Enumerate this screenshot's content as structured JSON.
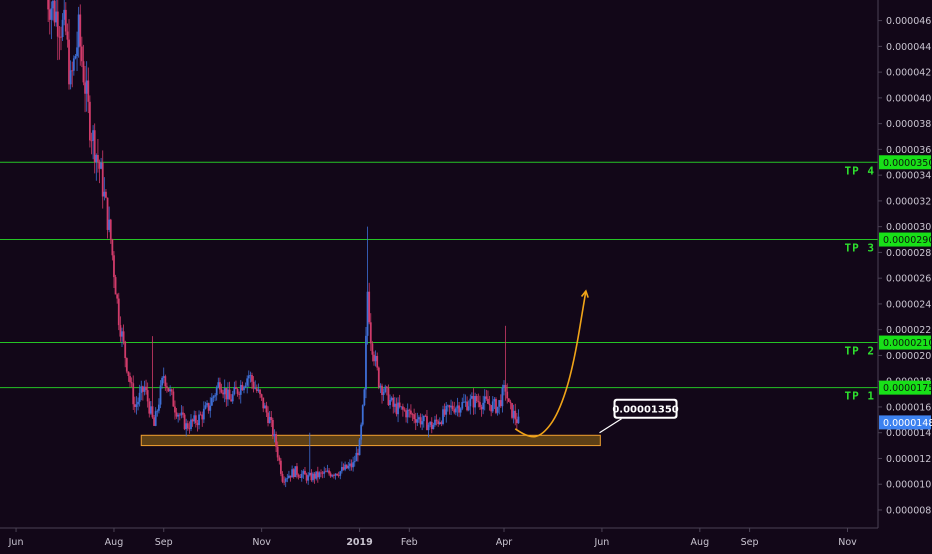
{
  "colors": {
    "background": "#120718",
    "axis_text": "#c9c4d0",
    "tp_line": "#25c425",
    "tp_badge": "#18e018",
    "up_candle": "#3e6fd6",
    "down_candle": "#d03b6a",
    "support_fill": "#6b4a16",
    "support_stroke": "#f0a030",
    "projection": "#f0a418",
    "current_price_badge": "#3d82f0"
  },
  "chart_data": {
    "type": "candlestick",
    "price_axis": {
      "ylim": [
        7e-07,
        4.7e-06
      ],
      "ticks": [
        "0.00000800",
        "0.00001000",
        "0.00001200",
        "0.00001400",
        "0.00001600",
        "0.00001800",
        "0.00002000",
        "0.00002200",
        "0.00002400",
        "0.00002600",
        "0.00002800",
        "0.00003000",
        "0.00003200",
        "0.00003400",
        "0.00003600",
        "0.00003800",
        "0.00004000",
        "0.00004200",
        "0.00004400",
        "0.00004600"
      ]
    },
    "time_axis": {
      "ticks": [
        {
          "label": "Jun",
          "date": "2018-06-01"
        },
        {
          "label": "Aug",
          "date": "2018-08-01"
        },
        {
          "label": "Sep",
          "date": "2018-09-01"
        },
        {
          "label": "Nov",
          "date": "2018-11-01"
        },
        {
          "label": "2019",
          "date": "2019-01-01",
          "bold": true
        },
        {
          "label": "Feb",
          "date": "2019-02-01"
        },
        {
          "label": "Apr",
          "date": "2019-04-01"
        },
        {
          "label": "Jun",
          "date": "2019-06-01"
        },
        {
          "label": "Aug",
          "date": "2019-08-01"
        },
        {
          "label": "Sep",
          "date": "2019-09-01"
        },
        {
          "label": "Nov",
          "date": "2019-11-01"
        }
      ]
    },
    "levels": [
      {
        "name": "TP 4",
        "price": 3.5e-06,
        "label": "0.00003500"
      },
      {
        "name": "TP 3",
        "price": 2.9e-06,
        "label": "0.00002900"
      },
      {
        "name": "TP 2",
        "price": 2.1e-06,
        "label": "0.00002100"
      },
      {
        "name": "TP 1",
        "price": 1.75e-06,
        "label": "0.00001750"
      }
    ],
    "current_price": {
      "price": 1.48e-06,
      "label": "0.00001480"
    },
    "support_zone": {
      "top": 1.38e-06,
      "bottom": 1.3e-06,
      "start": "2018-08-18",
      "end": "2019-05-31"
    },
    "callout": {
      "text": "0.00001350",
      "start": "2019-06-02",
      "price": 1.4e-06
    },
    "projection": [
      {
        "date": "2019-04-08",
        "price": 1.43e-06
      },
      {
        "date": "2019-04-16",
        "price": 1.36e-06
      },
      {
        "date": "2019-04-25",
        "price": 1.38e-06
      },
      {
        "date": "2019-05-05",
        "price": 1.55e-06
      },
      {
        "date": "2019-05-14",
        "price": 1.9e-06
      },
      {
        "date": "2019-05-22",
        "price": 2.5e-06
      }
    ],
    "series_anchors": [
      {
        "date": "2018-06-20",
        "price": 4.8e-06
      },
      {
        "date": "2018-07-02",
        "price": 4.5e-06
      },
      {
        "date": "2018-07-05",
        "price": 4.1e-06
      },
      {
        "date": "2018-07-10",
        "price": 4.5e-06
      },
      {
        "date": "2018-07-17",
        "price": 3.8e-06
      },
      {
        "date": "2018-07-24",
        "price": 3.4e-06
      },
      {
        "date": "2018-07-30",
        "price": 2.9e-06
      },
      {
        "date": "2018-08-04",
        "price": 2.3e-06
      },
      {
        "date": "2018-08-08",
        "price": 2e-06
      },
      {
        "date": "2018-08-14",
        "price": 1.6e-06
      },
      {
        "date": "2018-08-20",
        "price": 1.75e-06
      },
      {
        "date": "2018-08-26",
        "price": 1.45e-06
      },
      {
        "date": "2018-09-01",
        "price": 1.85e-06
      },
      {
        "date": "2018-09-08",
        "price": 1.6e-06
      },
      {
        "date": "2018-09-15",
        "price": 1.45e-06
      },
      {
        "date": "2018-09-22",
        "price": 1.5e-06
      },
      {
        "date": "2018-09-29",
        "price": 1.6e-06
      },
      {
        "date": "2018-10-06",
        "price": 1.8e-06
      },
      {
        "date": "2018-10-12",
        "price": 1.65e-06
      },
      {
        "date": "2018-10-18",
        "price": 1.75e-06
      },
      {
        "date": "2018-10-24",
        "price": 1.85e-06
      },
      {
        "date": "2018-10-30",
        "price": 1.7e-06
      },
      {
        "date": "2018-11-06",
        "price": 1.5e-06
      },
      {
        "date": "2018-11-10",
        "price": 1.3e-06
      },
      {
        "date": "2018-11-14",
        "price": 1.05e-06
      },
      {
        "date": "2018-11-22",
        "price": 1.1e-06
      },
      {
        "date": "2018-11-30",
        "price": 1.05e-06
      },
      {
        "date": "2018-12-10",
        "price": 1.08e-06
      },
      {
        "date": "2018-12-20",
        "price": 1.1e-06
      },
      {
        "date": "2018-12-28",
        "price": 1.15e-06
      },
      {
        "date": "2019-01-01",
        "price": 1.3e-06
      },
      {
        "date": "2019-01-04",
        "price": 1.7e-06
      },
      {
        "date": "2019-01-06",
        "price": 2.5e-06
      },
      {
        "date": "2019-01-08",
        "price": 2.15e-06
      },
      {
        "date": "2019-01-13",
        "price": 1.8e-06
      },
      {
        "date": "2019-01-22",
        "price": 1.6e-06
      },
      {
        "date": "2019-02-01",
        "price": 1.55e-06
      },
      {
        "date": "2019-02-15",
        "price": 1.45e-06
      },
      {
        "date": "2019-02-28",
        "price": 1.6e-06
      },
      {
        "date": "2019-03-15",
        "price": 1.65e-06
      },
      {
        "date": "2019-03-28",
        "price": 1.6e-06
      },
      {
        "date": "2019-04-02",
        "price": 1.75e-06
      },
      {
        "date": "2019-04-04",
        "price": 1.6e-06
      },
      {
        "date": "2019-04-10",
        "price": 1.48e-06
      }
    ]
  }
}
